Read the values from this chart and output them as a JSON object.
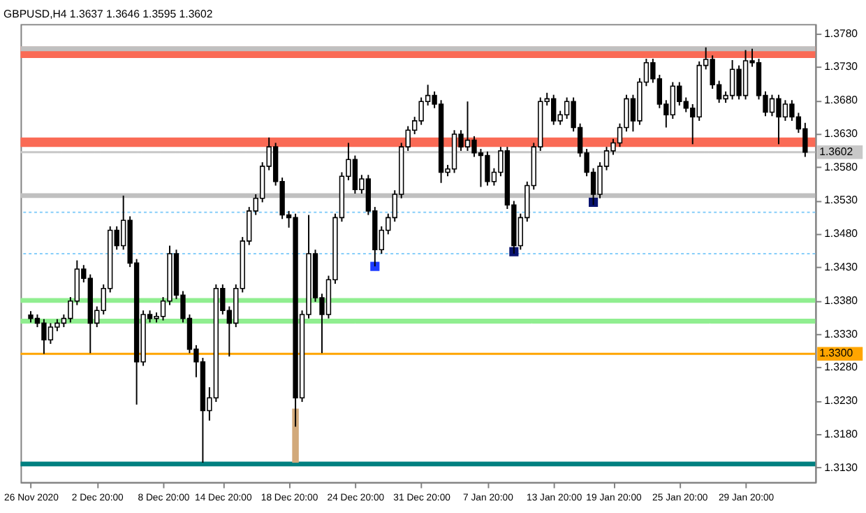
{
  "chart_data": {
    "type": "candlestick",
    "title": "GBPUSD,H4  1.3637 1.3646 1.3595 1.3602",
    "categories": [
      "26 Nov 2020",
      null,
      null,
      null,
      null,
      null,
      null,
      null,
      null,
      null,
      "2 Dec 20:00",
      null,
      null,
      null,
      null,
      null,
      null,
      null,
      null,
      null,
      "8 Dec 20:00",
      null,
      null,
      null,
      null,
      null,
      null,
      null,
      null,
      "14 Dec 20:00",
      null,
      null,
      null,
      null,
      null,
      null,
      null,
      null,
      null,
      "18 Dec 20:00",
      null,
      null,
      null,
      null,
      null,
      null,
      null,
      null,
      null,
      "24 Dec 20:00",
      null,
      null,
      null,
      null,
      null,
      null,
      null,
      null,
      null,
      "31 Dec 20:00",
      null,
      null,
      null,
      null,
      null,
      null,
      null,
      null,
      null,
      "7 Jan 20:00",
      null,
      null,
      null,
      null,
      null,
      null,
      null,
      null,
      null,
      "13 Jan 20:00",
      null,
      null,
      null,
      null,
      null,
      null,
      null,
      null,
      "19 Jan 20:00",
      null,
      null,
      null,
      null,
      null,
      null,
      null,
      null,
      null,
      "25 Jan 20:00",
      null,
      null,
      null,
      null,
      null,
      null,
      null,
      null,
      null,
      "29 Jan 20:00",
      null,
      null,
      null,
      null,
      null,
      null,
      null,
      null,
      null
    ],
    "ohlc": [
      [
        1.3358,
        1.3364,
        1.3347,
        1.3353
      ],
      [
        1.3353,
        1.3359,
        1.334,
        1.3346
      ],
      [
        1.3346,
        1.3352,
        1.33,
        1.3321
      ],
      [
        1.3321,
        1.3346,
        1.3315,
        1.334
      ],
      [
        1.334,
        1.3352,
        1.3334,
        1.3346
      ],
      [
        1.3346,
        1.3359,
        1.334,
        1.3353
      ],
      [
        1.3353,
        1.3385,
        1.3347,
        1.3379
      ],
      [
        1.3379,
        1.344,
        1.3373,
        1.3427
      ],
      [
        1.3427,
        1.3433,
        1.3407,
        1.3413
      ],
      [
        1.3413,
        1.3419,
        1.3301,
        1.3346
      ],
      [
        1.3346,
        1.3371,
        1.334,
        1.3365
      ],
      [
        1.3365,
        1.3404,
        1.3359,
        1.3398
      ],
      [
        1.3398,
        1.3491,
        1.3392,
        1.3485
      ],
      [
        1.3485,
        1.3491,
        1.3456,
        1.3462
      ],
      [
        1.3462,
        1.3537,
        1.3456,
        1.35
      ],
      [
        1.35,
        1.3506,
        1.343,
        1.3436
      ],
      [
        1.3436,
        1.3442,
        1.3224,
        1.3288
      ],
      [
        1.3288,
        1.3365,
        1.3282,
        1.3359
      ],
      [
        1.3359,
        1.3365,
        1.3347,
        1.3353
      ],
      [
        1.3353,
        1.3362,
        1.3347,
        1.3356
      ],
      [
        1.3356,
        1.3385,
        1.335,
        1.3379
      ],
      [
        1.3379,
        1.3462,
        1.3373,
        1.345
      ],
      [
        1.345,
        1.3456,
        1.3382,
        1.3388
      ],
      [
        1.3388,
        1.3394,
        1.3347,
        1.3353
      ],
      [
        1.3353,
        1.3359,
        1.3301,
        1.3307
      ],
      [
        1.3307,
        1.3313,
        1.3265,
        1.3288
      ],
      [
        1.3288,
        1.3294,
        1.3137,
        1.3215
      ],
      [
        1.3215,
        1.325,
        1.32,
        1.3234
      ],
      [
        1.3234,
        1.3404,
        1.3228,
        1.3398
      ],
      [
        1.3398,
        1.3404,
        1.3359,
        1.3365
      ],
      [
        1.3365,
        1.3371,
        1.3296,
        1.3346
      ],
      [
        1.3346,
        1.3404,
        1.334,
        1.3398
      ],
      [
        1.3398,
        1.3475,
        1.3392,
        1.3469
      ],
      [
        1.3469,
        1.352,
        1.3463,
        1.3514
      ],
      [
        1.3514,
        1.3539,
        1.3508,
        1.3533
      ],
      [
        1.3533,
        1.3587,
        1.3527,
        1.3581
      ],
      [
        1.3581,
        1.3624,
        1.3575,
        1.361
      ],
      [
        1.361,
        1.3616,
        1.3552,
        1.3558
      ],
      [
        1.3558,
        1.3564,
        1.3502,
        1.3508
      ],
      [
        1.3508,
        1.3514,
        1.3489,
        1.3504
      ],
      [
        1.3504,
        1.351,
        1.3191,
        1.3234
      ],
      [
        1.3234,
        1.3365,
        1.3228,
        1.3359
      ],
      [
        1.3359,
        1.3508,
        1.3353,
        1.345
      ],
      [
        1.345,
        1.3456,
        1.3378,
        1.3384
      ],
      [
        1.3384,
        1.339,
        1.3301,
        1.3359
      ],
      [
        1.3359,
        1.3417,
        1.3353,
        1.3411
      ],
      [
        1.3411,
        1.351,
        1.3405,
        1.3504
      ],
      [
        1.3504,
        1.3572,
        1.3498,
        1.3566
      ],
      [
        1.3566,
        1.3616,
        1.356,
        1.3591
      ],
      [
        1.3591,
        1.3597,
        1.354,
        1.3546
      ],
      [
        1.3546,
        1.3568,
        1.354,
        1.3562
      ],
      [
        1.3562,
        1.3568,
        1.3508,
        1.3514
      ],
      [
        1.3514,
        1.352,
        1.3431,
        1.3456
      ],
      [
        1.3456,
        1.3491,
        1.345,
        1.3485
      ],
      [
        1.3485,
        1.351,
        1.3479,
        1.3504
      ],
      [
        1.3504,
        1.3545,
        1.3498,
        1.3539
      ],
      [
        1.3539,
        1.3616,
        1.3533,
        1.361
      ],
      [
        1.361,
        1.3641,
        1.3604,
        1.3635
      ],
      [
        1.3635,
        1.3655,
        1.3629,
        1.3649
      ],
      [
        1.3649,
        1.3684,
        1.3643,
        1.3678
      ],
      [
        1.3678,
        1.3703,
        1.3672,
        1.3687
      ],
      [
        1.3687,
        1.3693,
        1.3668,
        1.3674
      ],
      [
        1.3674,
        1.368,
        1.3556,
        1.3572
      ],
      [
        1.3572,
        1.3583,
        1.3566,
        1.3577
      ],
      [
        1.3577,
        1.3635,
        1.3571,
        1.3629
      ],
      [
        1.3629,
        1.3635,
        1.3604,
        1.361
      ],
      [
        1.361,
        1.3678,
        1.3604,
        1.362
      ],
      [
        1.362,
        1.3626,
        1.3595,
        1.3601
      ],
      [
        1.3601,
        1.3607,
        1.355,
        1.3597
      ],
      [
        1.3597,
        1.3603,
        1.3552,
        1.3558
      ],
      [
        1.3558,
        1.3578,
        1.3552,
        1.3572
      ],
      [
        1.3572,
        1.361,
        1.3566,
        1.3604
      ],
      [
        1.3604,
        1.361,
        1.3517,
        1.3523
      ],
      [
        1.3523,
        1.3529,
        1.345,
        1.3462
      ],
      [
        1.3462,
        1.351,
        1.3456,
        1.3504
      ],
      [
        1.3504,
        1.3558,
        1.3498,
        1.3552
      ],
      [
        1.3552,
        1.3616,
        1.3546,
        1.361
      ],
      [
        1.361,
        1.3684,
        1.3604,
        1.3678
      ],
      [
        1.3678,
        1.3691,
        1.3672,
        1.3682
      ],
      [
        1.3682,
        1.3688,
        1.3643,
        1.3649
      ],
      [
        1.3649,
        1.3664,
        1.3643,
        1.3658
      ],
      [
        1.3658,
        1.3684,
        1.3652,
        1.3678
      ],
      [
        1.3678,
        1.3684,
        1.3633,
        1.3639
      ],
      [
        1.3639,
        1.3645,
        1.3595,
        1.3601
      ],
      [
        1.3601,
        1.3607,
        1.3566,
        1.3572
      ],
      [
        1.3572,
        1.3578,
        1.3523,
        1.3539
      ],
      [
        1.3539,
        1.3587,
        1.3533,
        1.3581
      ],
      [
        1.3581,
        1.361,
        1.3575,
        1.3604
      ],
      [
        1.3604,
        1.3622,
        1.3598,
        1.3616
      ],
      [
        1.3616,
        1.3645,
        1.361,
        1.3639
      ],
      [
        1.3639,
        1.3688,
        1.3633,
        1.3682
      ],
      [
        1.3682,
        1.3688,
        1.3633,
        1.3649
      ],
      [
        1.3649,
        1.3713,
        1.3643,
        1.3707
      ],
      [
        1.3707,
        1.3742,
        1.3701,
        1.3736
      ],
      [
        1.3736,
        1.3742,
        1.3706,
        1.3712
      ],
      [
        1.3712,
        1.3718,
        1.3668,
        1.3674
      ],
      [
        1.3674,
        1.368,
        1.3639,
        1.3658
      ],
      [
        1.3658,
        1.3707,
        1.3652,
        1.3701
      ],
      [
        1.3701,
        1.3707,
        1.3672,
        1.3678
      ],
      [
        1.3678,
        1.3684,
        1.3662,
        1.3668
      ],
      [
        1.3668,
        1.3674,
        1.3614,
        1.3655
      ],
      [
        1.3655,
        1.3738,
        1.3649,
        1.3732
      ],
      [
        1.3732,
        1.3759,
        1.3726,
        1.3741
      ],
      [
        1.3741,
        1.3747,
        1.3697,
        1.3703
      ],
      [
        1.3703,
        1.3709,
        1.3676,
        1.3682
      ],
      [
        1.3682,
        1.3693,
        1.3676,
        1.3687
      ],
      [
        1.3687,
        1.374,
        1.3681,
        1.3726
      ],
      [
        1.3726,
        1.3732,
        1.3681,
        1.3687
      ],
      [
        1.3687,
        1.3755,
        1.3681,
        1.3739
      ],
      [
        1.3739,
        1.3757,
        1.373,
        1.3736
      ],
      [
        1.3736,
        1.3742,
        1.3681,
        1.3687
      ],
      [
        1.3687,
        1.3693,
        1.3656,
        1.3662
      ],
      [
        1.3662,
        1.3688,
        1.3656,
        1.3682
      ],
      [
        1.3682,
        1.3688,
        1.3614,
        1.3655
      ],
      [
        1.3655,
        1.368,
        1.3649,
        1.3674
      ],
      [
        1.3674,
        1.368,
        1.3649,
        1.3655
      ],
      [
        1.3655,
        1.3661,
        1.3631,
        1.3637
      ],
      [
        1.3637,
        1.3646,
        1.3595,
        1.3602
      ]
    ],
    "series": [
      {
        "type": "bar",
        "color": "#d2a97a",
        "values": [
          null,
          null,
          null,
          null,
          null,
          null,
          null,
          null,
          null,
          null,
          null,
          null,
          null,
          null,
          null,
          null,
          null,
          null,
          null,
          null,
          null,
          null,
          null,
          null,
          null,
          null,
          null,
          null,
          null,
          null,
          null,
          null,
          null,
          null,
          null,
          null,
          null,
          null,
          null,
          null,
          0.0081,
          null,
          null,
          null,
          null,
          null,
          null,
          null,
          null,
          null,
          null,
          null,
          null,
          null,
          null,
          null,
          null,
          null,
          null,
          null,
          null,
          null,
          null,
          null,
          null,
          null,
          null,
          null,
          null,
          null,
          null,
          null,
          null,
          null,
          null,
          null,
          null,
          null,
          null,
          null,
          null,
          null,
          null,
          null,
          null,
          null,
          null,
          null,
          null,
          null,
          null,
          null,
          null,
          null,
          null,
          null,
          null,
          null,
          null,
          null,
          null,
          null,
          null,
          null,
          null,
          null,
          null,
          null,
          null,
          null,
          null,
          null,
          null,
          null,
          null,
          null,
          null,
          null
        ],
        "base": [
          null,
          null,
          null,
          null,
          null,
          null,
          null,
          null,
          null,
          null,
          null,
          null,
          null,
          null,
          null,
          null,
          null,
          null,
          null,
          null,
          null,
          null,
          null,
          null,
          null,
          null,
          null,
          null,
          null,
          null,
          null,
          null,
          null,
          null,
          null,
          null,
          null,
          null,
          null,
          null,
          1.3137,
          null,
          null,
          null,
          null,
          null,
          null,
          null,
          null,
          null,
          null,
          null,
          null,
          null,
          null,
          null,
          null,
          null,
          null,
          null,
          null,
          null,
          null,
          null,
          null,
          null,
          null,
          null,
          null,
          null,
          null,
          null,
          null,
          null,
          null,
          null,
          null,
          null,
          null,
          null,
          null,
          null,
          null,
          null,
          null,
          null,
          null,
          null,
          null,
          null,
          null,
          null,
          null,
          null,
          null,
          null,
          null,
          null,
          null,
          null,
          null,
          null,
          null,
          null,
          null,
          null,
          null,
          null,
          null,
          null,
          null,
          null,
          null,
          null,
          null,
          null,
          null,
          null
        ]
      },
      {
        "type": "scatter",
        "marker": "square",
        "color": "#1e3cff",
        "values": [
          null,
          null,
          null,
          null,
          null,
          null,
          null,
          null,
          null,
          null,
          null,
          null,
          null,
          null,
          null,
          null,
          null,
          null,
          null,
          null,
          null,
          null,
          null,
          null,
          null,
          null,
          null,
          null,
          null,
          null,
          null,
          null,
          null,
          null,
          null,
          null,
          null,
          null,
          null,
          null,
          null,
          null,
          null,
          null,
          null,
          null,
          null,
          null,
          null,
          null,
          null,
          null,
          1.3431,
          null,
          null,
          null,
          null,
          null,
          null,
          null,
          null,
          null,
          null,
          null,
          null,
          null,
          null,
          null,
          null,
          null,
          null,
          null,
          null,
          null,
          null,
          null,
          null,
          null,
          null,
          null,
          null,
          null,
          null,
          null,
          null,
          null,
          null,
          null,
          null,
          null,
          null,
          null,
          null,
          null,
          null,
          null,
          null,
          null,
          null,
          null,
          null,
          null,
          null,
          null,
          null,
          null,
          null,
          null,
          null,
          null,
          null,
          null,
          null,
          null,
          null,
          null,
          null,
          null
        ]
      },
      {
        "type": "scatter",
        "marker": "square",
        "color": "#0a1470",
        "values": [
          null,
          null,
          null,
          null,
          null,
          null,
          null,
          null,
          null,
          null,
          null,
          null,
          null,
          null,
          null,
          null,
          null,
          null,
          null,
          null,
          null,
          null,
          null,
          null,
          null,
          null,
          null,
          null,
          null,
          null,
          null,
          null,
          null,
          null,
          null,
          null,
          null,
          null,
          null,
          null,
          null,
          null,
          null,
          null,
          null,
          null,
          null,
          null,
          null,
          null,
          null,
          null,
          null,
          null,
          null,
          null,
          null,
          null,
          null,
          null,
          null,
          null,
          null,
          null,
          null,
          null,
          null,
          null,
          null,
          null,
          null,
          null,
          null,
          1.3453,
          null,
          null,
          null,
          null,
          null,
          null,
          null,
          null,
          null,
          null,
          null,
          1.3527,
          null,
          null,
          null,
          null,
          null,
          null,
          null,
          null,
          null,
          null,
          null,
          null,
          null,
          null,
          null,
          null,
          null,
          null,
          null,
          null,
          null,
          null,
          null,
          null,
          null,
          null,
          null,
          null,
          null,
          null,
          null,
          null
        ]
      }
    ],
    "ref_lines": [
      {
        "axis": "y",
        "value": 1.3757,
        "color": "#c0c0c0"
      },
      {
        "axis": "y",
        "value": 1.3602,
        "color": "#c8c8c8",
        "label": "1.3602"
      },
      {
        "axis": "y",
        "value": 1.3537,
        "color": "#c0c0c0"
      },
      {
        "axis": "y",
        "value": 1.3512,
        "color": "#87cefa",
        "line_style": "dotted"
      },
      {
        "axis": "y",
        "value": 1.345,
        "color": "#87cefa",
        "line_style": "dotted"
      },
      {
        "axis": "y",
        "value": 1.338,
        "color": "#90ee90"
      },
      {
        "axis": "y",
        "value": 1.3349,
        "color": "#90ee90"
      },
      {
        "axis": "y",
        "value": 1.33,
        "color": "#ffa500",
        "label": "1.3300"
      },
      {
        "axis": "y",
        "value": 1.3135,
        "color": "#008080"
      }
    ],
    "bands": [
      {
        "axis": "y",
        "from": 1.3743,
        "to": 1.376,
        "color": "#fa6a55"
      },
      {
        "axis": "y",
        "from": 1.361,
        "to": 1.3624,
        "color": "#fa6a55"
      }
    ],
    "ylim": [
      1.3108,
      1.3794
    ],
    "yticks": [
      {
        "value": 1.313,
        "label": "1.3130"
      },
      {
        "value": 1.318,
        "label": "1.3180"
      },
      {
        "value": 1.323,
        "label": "1.3230"
      },
      {
        "value": 1.328,
        "label": "1.3280"
      },
      {
        "value": 1.333,
        "label": "1.3330"
      },
      {
        "value": 1.338,
        "label": "1.3380"
      },
      {
        "value": 1.343,
        "label": "1.3430"
      },
      {
        "value": 1.348,
        "label": "1.3480"
      },
      {
        "value": 1.353,
        "label": "1.3530"
      },
      {
        "value": 1.358,
        "label": "1.3580"
      },
      {
        "value": 1.363,
        "label": "1.3630"
      },
      {
        "value": 1.368,
        "label": "1.3680"
      },
      {
        "value": 1.373,
        "label": "1.3730"
      },
      {
        "value": 1.378,
        "label": "1.3780"
      }
    ]
  }
}
